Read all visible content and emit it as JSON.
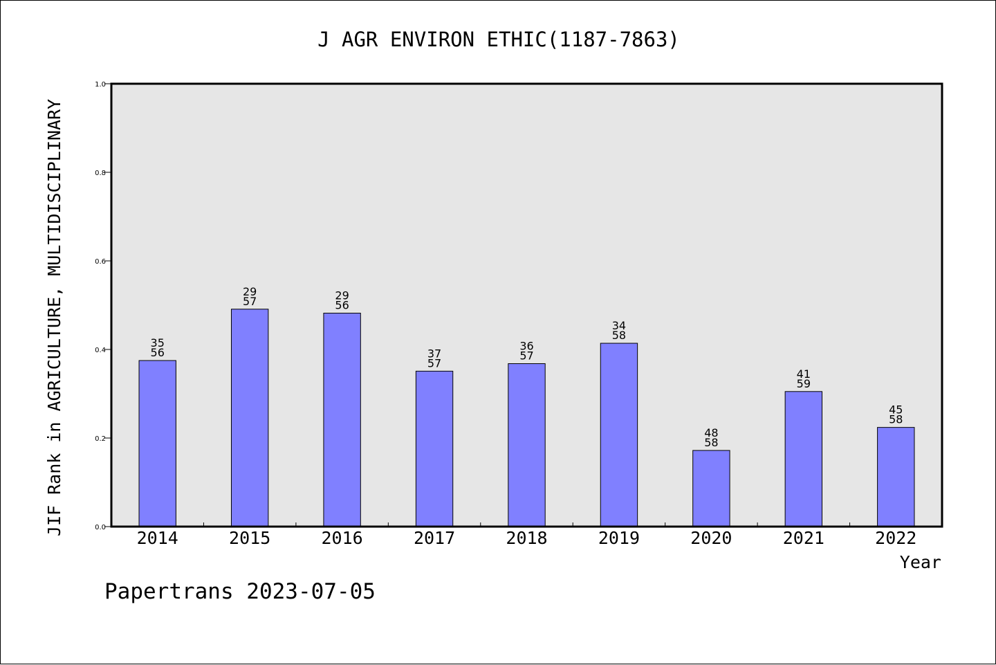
{
  "chart_data": {
    "type": "bar",
    "title": "J AGR ENVIRON ETHIC(1187-7863)",
    "xlabel": "Year",
    "ylabel": "JIF Rank in AGRICULTURE, MULTIDISCIPLINARY",
    "ylim": [
      0,
      1.0
    ],
    "yticks": [
      "0.0",
      "0.2",
      "0.4",
      "0.6",
      "0.8",
      "1.0"
    ],
    "categories": [
      "2014",
      "2015",
      "2016",
      "2017",
      "2018",
      "2019",
      "2020",
      "2021",
      "2022"
    ],
    "values": [
      0.375,
      0.491,
      0.482,
      0.351,
      0.368,
      0.414,
      0.172,
      0.305,
      0.224
    ],
    "rank_labels": [
      {
        "rank": "35",
        "total": "56"
      },
      {
        "rank": "29",
        "total": "57"
      },
      {
        "rank": "29",
        "total": "56"
      },
      {
        "rank": "37",
        "total": "57"
      },
      {
        "rank": "36",
        "total": "57"
      },
      {
        "rank": "34",
        "total": "58"
      },
      {
        "rank": "48",
        "total": "58"
      },
      {
        "rank": "41",
        "total": "59"
      },
      {
        "rank": "45",
        "total": "58"
      }
    ],
    "grid": false,
    "colors": {
      "bar": "#8080ff",
      "plot_background": "#e6e6e6",
      "axis": "#000000"
    }
  },
  "footer": {
    "credit": "Papertrans 2023-07-05"
  }
}
